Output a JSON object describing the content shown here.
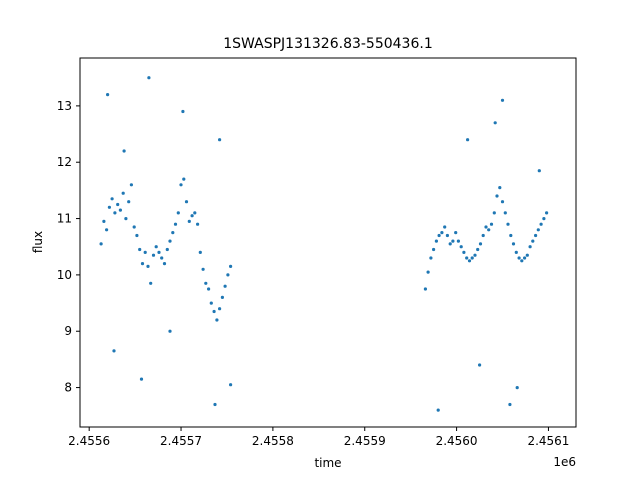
{
  "chart_data": {
    "type": "scatter",
    "title": "1SWASPJ131326.83-550436.1",
    "xlabel": "time",
    "ylabel": "flux",
    "x_offset_label": "1e6",
    "xlim": [
      2455590,
      2456130
    ],
    "ylim": [
      7.3,
      13.85
    ],
    "x_ticks": [
      2455600,
      2455700,
      2455800,
      2455900,
      2456000,
      2456100
    ],
    "x_tick_labels": [
      "2.4556",
      "2.4557",
      "2.4558",
      "2.4559",
      "2.4560",
      "2.4561"
    ],
    "y_ticks": [
      8,
      9,
      10,
      11,
      12,
      13
    ],
    "y_tick_labels": [
      "8",
      "9",
      "10",
      "11",
      "12",
      "13"
    ],
    "grid": false,
    "marker_color": "#1f77b4",
    "series": [
      {
        "points": [
          [
            2455613,
            10.55
          ],
          [
            2455616,
            10.95
          ],
          [
            2455619,
            10.8
          ],
          [
            2455622,
            11.2
          ],
          [
            2455625,
            11.35
          ],
          [
            2455628,
            11.1
          ],
          [
            2455631,
            11.25
          ],
          [
            2455634,
            11.15
          ],
          [
            2455637,
            11.45
          ],
          [
            2455640,
            11.0
          ],
          [
            2455643,
            11.3
          ],
          [
            2455646,
            11.6
          ],
          [
            2455649,
            10.85
          ],
          [
            2455652,
            10.7
          ],
          [
            2455655,
            10.45
          ],
          [
            2455658,
            10.2
          ],
          [
            2455661,
            10.4
          ],
          [
            2455664,
            10.15
          ],
          [
            2455667,
            9.85
          ],
          [
            2455670,
            10.35
          ],
          [
            2455673,
            10.5
          ],
          [
            2455676,
            10.4
          ],
          [
            2455679,
            10.3
          ],
          [
            2455682,
            10.2
          ],
          [
            2455685,
            10.45
          ],
          [
            2455688,
            10.6
          ],
          [
            2455691,
            10.75
          ],
          [
            2455694,
            10.9
          ],
          [
            2455697,
            11.1
          ],
          [
            2455700,
            11.6
          ],
          [
            2455703,
            11.7
          ],
          [
            2455706,
            11.3
          ],
          [
            2455709,
            10.95
          ],
          [
            2455712,
            11.05
          ],
          [
            2455715,
            11.1
          ],
          [
            2455718,
            10.9
          ],
          [
            2455721,
            10.4
          ],
          [
            2455724,
            10.1
          ],
          [
            2455727,
            9.85
          ],
          [
            2455730,
            9.75
          ],
          [
            2455733,
            9.5
          ],
          [
            2455736,
            9.35
          ],
          [
            2455739,
            9.2
          ],
          [
            2455742,
            9.4
          ],
          [
            2455745,
            9.6
          ],
          [
            2455748,
            9.8
          ],
          [
            2455751,
            10.0
          ],
          [
            2455754,
            10.15
          ],
          [
            2455966,
            9.75
          ],
          [
            2455969,
            10.05
          ],
          [
            2455972,
            10.3
          ],
          [
            2455975,
            10.45
          ],
          [
            2455978,
            10.6
          ],
          [
            2455981,
            10.7
          ],
          [
            2455984,
            10.75
          ],
          [
            2455987,
            10.85
          ],
          [
            2455990,
            10.7
          ],
          [
            2455993,
            10.55
          ],
          [
            2455996,
            10.6
          ],
          [
            2455999,
            10.75
          ],
          [
            2456002,
            10.6
          ],
          [
            2456005,
            10.5
          ],
          [
            2456008,
            10.4
          ],
          [
            2456011,
            10.3
          ],
          [
            2456014,
            10.25
          ],
          [
            2456017,
            10.3
          ],
          [
            2456020,
            10.35
          ],
          [
            2456023,
            10.45
          ],
          [
            2456026,
            10.55
          ],
          [
            2456029,
            10.7
          ],
          [
            2456032,
            10.85
          ],
          [
            2456035,
            10.8
          ],
          [
            2456038,
            10.9
          ],
          [
            2456041,
            11.1
          ],
          [
            2456044,
            11.4
          ],
          [
            2456047,
            11.55
          ],
          [
            2456050,
            11.3
          ],
          [
            2456053,
            11.1
          ],
          [
            2456056,
            10.9
          ],
          [
            2456059,
            10.7
          ],
          [
            2456062,
            10.55
          ],
          [
            2456065,
            10.4
          ],
          [
            2456068,
            10.3
          ],
          [
            2456071,
            10.25
          ],
          [
            2456074,
            10.3
          ],
          [
            2456077,
            10.35
          ],
          [
            2456080,
            10.5
          ],
          [
            2456083,
            10.6
          ],
          [
            2456086,
            10.7
          ],
          [
            2456089,
            10.8
          ],
          [
            2456092,
            10.9
          ],
          [
            2456095,
            11.0
          ],
          [
            2456098,
            11.1
          ],
          [
            2455620,
            13.2
          ],
          [
            2455638,
            12.2
          ],
          [
            2455665,
            13.5
          ],
          [
            2455702,
            12.9
          ],
          [
            2455742,
            12.4
          ],
          [
            2455688,
            9.0
          ],
          [
            2455627,
            8.65
          ],
          [
            2455657,
            8.15
          ],
          [
            2455737,
            7.7
          ],
          [
            2455754,
            8.05
          ],
          [
            2455980,
            7.6
          ],
          [
            2456042,
            12.7
          ],
          [
            2456050,
            13.1
          ],
          [
            2456058,
            7.7
          ],
          [
            2456066,
            8.0
          ],
          [
            2456025,
            8.4
          ],
          [
            2456012,
            12.4
          ],
          [
            2456090,
            11.85
          ]
        ]
      }
    ]
  }
}
